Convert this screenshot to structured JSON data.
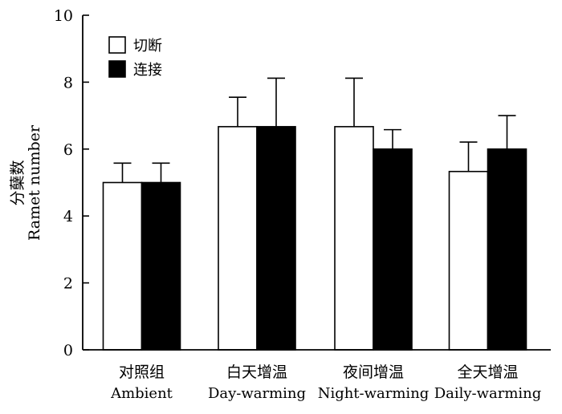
{
  "chart_data": {
    "type": "bar",
    "ylabel_cn": "分蘖数",
    "ylabel_en": "Ramet number",
    "ylim": [
      0,
      10
    ],
    "yticks": [
      "0",
      "2",
      "4",
      "6",
      "8",
      "10"
    ],
    "ytick_values": [
      0,
      2,
      4,
      6,
      8,
      10
    ],
    "categories_cn": [
      "对照组",
      "白天增温",
      "夜间增温",
      "全天增温"
    ],
    "categories_en": [
      "Ambient",
      "Day-warming",
      "Night-warming",
      "Daily-warming"
    ],
    "legend_position": "top-left",
    "series": [
      {
        "name": "切断",
        "fill": "#ffffff",
        "values": [
          5.0,
          6.67,
          6.67,
          5.33
        ],
        "errors": [
          0.58,
          0.88,
          1.45,
          0.88
        ]
      },
      {
        "name": "连接",
        "fill": "#000000",
        "values": [
          5.0,
          6.67,
          6.0,
          6.0
        ],
        "errors": [
          0.58,
          1.45,
          0.58,
          1.0
        ]
      }
    ]
  }
}
